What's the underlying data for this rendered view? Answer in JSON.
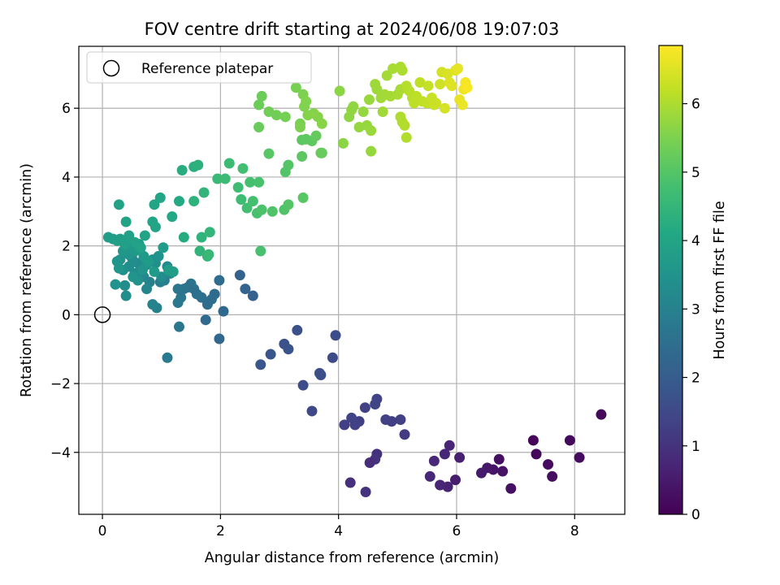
{
  "chart_data": {
    "type": "scatter",
    "title": "FOV centre drift starting at 2024/06/08 19:07:03",
    "xlabel": "Angular distance from reference (arcmin)",
    "ylabel": "Rotation from reference (arcmin)",
    "xlim": [
      -0.4,
      8.85
    ],
    "ylim": [
      -5.8,
      7.8
    ],
    "xticks": [
      0,
      2,
      4,
      6,
      8
    ],
    "yticks": [
      -4,
      -2,
      0,
      2,
      4,
      6
    ],
    "grid": true,
    "legend": {
      "placement": "top-left",
      "entries": [
        "Reference platepar"
      ]
    },
    "reference_point": {
      "x": 0,
      "y": 0
    },
    "colorbar": {
      "label": "Hours from first FF file",
      "colormap": "viridis",
      "range": [
        0,
        6.85
      ],
      "ticks": [
        0,
        1,
        2,
        3,
        4,
        5,
        6
      ]
    },
    "points": [
      [
        8.45,
        -2.9,
        0.15
      ],
      [
        8.08,
        -4.15,
        0.2
      ],
      [
        7.92,
        -3.65,
        0.15
      ],
      [
        7.62,
        -4.7,
        0.25
      ],
      [
        7.55,
        -4.35,
        0.2
      ],
      [
        7.35,
        -4.05,
        0.15
      ],
      [
        7.3,
        -3.65,
        0.1
      ],
      [
        6.92,
        -5.05,
        0.3
      ],
      [
        6.78,
        -4.55,
        0.35
      ],
      [
        6.72,
        -4.2,
        0.3
      ],
      [
        6.62,
        -4.5,
        0.4
      ],
      [
        6.52,
        -4.45,
        0.45
      ],
      [
        6.42,
        -4.6,
        0.5
      ],
      [
        6.05,
        -4.15,
        0.6
      ],
      [
        5.98,
        -4.8,
        0.55
      ],
      [
        5.88,
        -3.8,
        0.7
      ],
      [
        5.85,
        -5.0,
        0.65
      ],
      [
        5.8,
        -4.05,
        0.75
      ],
      [
        5.72,
        -4.95,
        0.7
      ],
      [
        5.62,
        -4.25,
        0.8
      ],
      [
        5.55,
        -4.7,
        0.75
      ],
      [
        4.65,
        -4.05,
        0.95
      ],
      [
        4.62,
        -4.2,
        1.0
      ],
      [
        4.53,
        -4.3,
        0.9
      ],
      [
        4.46,
        -5.15,
        1.0
      ],
      [
        4.2,
        -4.88,
        0.95
      ],
      [
        5.12,
        -3.48,
        1.2
      ],
      [
        5.05,
        -3.05,
        1.3
      ],
      [
        4.9,
        -3.1,
        1.25
      ],
      [
        4.8,
        -3.05,
        1.3
      ],
      [
        4.65,
        -2.45,
        1.35
      ],
      [
        4.62,
        -2.6,
        1.4
      ],
      [
        4.45,
        -2.7,
        1.3
      ],
      [
        4.35,
        -3.1,
        1.25
      ],
      [
        4.28,
        -3.2,
        1.3
      ],
      [
        4.22,
        -3.0,
        1.35
      ],
      [
        4.1,
        -3.2,
        1.3
      ],
      [
        3.95,
        -0.6,
        1.6
      ],
      [
        3.9,
        -1.25,
        1.55
      ],
      [
        3.7,
        -1.75,
        1.6
      ],
      [
        3.68,
        -1.7,
        1.65
      ],
      [
        3.55,
        -2.8,
        1.5
      ],
      [
        3.4,
        -2.05,
        1.6
      ],
      [
        3.3,
        -0.45,
        1.7
      ],
      [
        3.15,
        -1.0,
        1.75
      ],
      [
        3.08,
        -0.85,
        1.7
      ],
      [
        2.85,
        -1.15,
        1.8
      ],
      [
        2.68,
        -1.45,
        1.85
      ],
      [
        2.55,
        0.55,
        2.1
      ],
      [
        2.42,
        0.75,
        2.2
      ],
      [
        2.33,
        1.15,
        2.15
      ],
      [
        2.05,
        0.1,
        2.3
      ],
      [
        1.98,
        1.0,
        2.4
      ],
      [
        1.98,
        -0.7,
        2.3
      ],
      [
        1.9,
        0.6,
        2.35
      ],
      [
        1.85,
        0.45,
        2.45
      ],
      [
        1.78,
        0.3,
        2.4
      ],
      [
        1.75,
        -0.15,
        2.35
      ],
      [
        1.68,
        0.5,
        2.5
      ],
      [
        1.6,
        0.6,
        2.55
      ],
      [
        1.55,
        0.75,
        2.5
      ],
      [
        1.5,
        0.9,
        2.6
      ],
      [
        1.45,
        0.8,
        2.55
      ],
      [
        1.38,
        0.75,
        2.6
      ],
      [
        1.33,
        0.5,
        2.65
      ],
      [
        1.28,
        0.35,
        2.7
      ],
      [
        1.28,
        0.75,
        2.65
      ],
      [
        1.3,
        -0.35,
        2.7
      ],
      [
        1.1,
        -1.25,
        2.8
      ],
      [
        1.05,
        1.0,
        2.9
      ],
      [
        0.98,
        0.95,
        2.95
      ],
      [
        0.92,
        0.2,
        3.0
      ],
      [
        0.85,
        0.3,
        3.05
      ],
      [
        0.8,
        0.95,
        3.0
      ],
      [
        0.75,
        0.75,
        3.1
      ],
      [
        0.7,
        1.1,
        3.15
      ],
      [
        0.65,
        1.35,
        3.2
      ],
      [
        0.6,
        1.5,
        3.25
      ],
      [
        0.55,
        1.2,
        3.3
      ],
      [
        0.5,
        1.65,
        3.3
      ],
      [
        0.45,
        1.4,
        3.35
      ],
      [
        0.4,
        0.55,
        3.3
      ],
      [
        0.38,
        0.85,
        3.35
      ],
      [
        0.35,
        1.3,
        3.4
      ],
      [
        0.3,
        1.6,
        3.45
      ],
      [
        0.25,
        1.55,
        3.5
      ],
      [
        0.22,
        0.88,
        3.45
      ],
      [
        1.15,
        1.2,
        3.2
      ],
      [
        1.1,
        1.4,
        3.25
      ],
      [
        1.0,
        1.1,
        3.3
      ],
      [
        0.9,
        1.5,
        3.35
      ],
      [
        0.85,
        1.6,
        3.4
      ],
      [
        0.95,
        1.7,
        3.45
      ],
      [
        0.75,
        1.45,
        3.5
      ],
      [
        0.68,
        1.3,
        3.5
      ],
      [
        0.6,
        1.0,
        3.45
      ],
      [
        0.52,
        1.1,
        3.5
      ],
      [
        0.45,
        1.75,
        3.55
      ],
      [
        0.4,
        1.9,
        3.6
      ],
      [
        0.35,
        1.85,
        3.6
      ],
      [
        0.28,
        1.35,
        3.6
      ],
      [
        0.48,
        2.0,
        3.65
      ],
      [
        0.55,
        1.85,
        3.65
      ],
      [
        0.62,
        2.05,
        3.7
      ],
      [
        0.7,
        1.7,
        3.7
      ],
      [
        0.78,
        1.55,
        3.72
      ],
      [
        0.88,
        1.25,
        3.68
      ],
      [
        1.03,
        1.95,
        3.75
      ],
      [
        1.12,
        1.3,
        3.8
      ],
      [
        1.2,
        1.25,
        3.78
      ],
      [
        0.1,
        2.25,
        3.8
      ],
      [
        0.18,
        2.2,
        3.8
      ],
      [
        0.25,
        2.15,
        3.85
      ],
      [
        0.3,
        2.2,
        3.82
      ],
      [
        0.38,
        2.05,
        3.85
      ],
      [
        0.45,
        2.3,
        3.9
      ],
      [
        0.55,
        2.1,
        3.9
      ],
      [
        0.65,
        1.95,
        3.92
      ],
      [
        0.72,
        2.3,
        3.95
      ],
      [
        0.28,
        3.2,
        3.9
      ],
      [
        0.4,
        2.7,
        3.95
      ],
      [
        0.85,
        2.7,
        3.98
      ],
      [
        0.9,
        2.55,
        4.0
      ],
      [
        0.88,
        3.2,
        4.02
      ],
      [
        0.98,
        3.4,
        4.05
      ],
      [
        1.18,
        2.85,
        4.1
      ],
      [
        1.3,
        3.3,
        4.15
      ],
      [
        1.38,
        2.25,
        4.2
      ],
      [
        1.35,
        4.2,
        4.25
      ],
      [
        1.55,
        4.3,
        4.3
      ],
      [
        1.62,
        4.35,
        4.35
      ],
      [
        1.55,
        3.3,
        4.4
      ],
      [
        1.72,
        3.55,
        4.45
      ],
      [
        1.68,
        2.25,
        4.4
      ],
      [
        1.65,
        1.85,
        4.45
      ],
      [
        1.78,
        1.7,
        4.5
      ],
      [
        1.82,
        2.4,
        4.5
      ],
      [
        1.8,
        1.75,
        4.55
      ],
      [
        1.95,
        3.95,
        4.6
      ],
      [
        2.08,
        3.95,
        4.65
      ],
      [
        2.15,
        4.4,
        4.65
      ],
      [
        2.3,
        3.7,
        4.7
      ],
      [
        2.35,
        3.35,
        4.7
      ],
      [
        2.38,
        4.25,
        4.75
      ],
      [
        2.45,
        3.1,
        4.78
      ],
      [
        2.5,
        3.85,
        4.8
      ],
      [
        2.55,
        3.3,
        4.8
      ],
      [
        2.62,
        2.95,
        4.85
      ],
      [
        2.65,
        3.85,
        4.85
      ],
      [
        2.68,
        1.85,
        4.85
      ],
      [
        2.7,
        3.05,
        4.9
      ],
      [
        2.88,
        3.0,
        4.95
      ],
      [
        3.08,
        3.05,
        4.95
      ],
      [
        3.1,
        4.15,
        4.98
      ],
      [
        3.15,
        4.35,
        5.0
      ],
      [
        3.15,
        3.2,
        5.0
      ],
      [
        3.4,
        3.4,
        5.05
      ],
      [
        2.82,
        4.68,
        5.05
      ],
      [
        3.38,
        4.6,
        5.1
      ],
      [
        3.38,
        5.08,
        5.1
      ],
      [
        3.45,
        5.1,
        5.15
      ],
      [
        3.55,
        5.05,
        5.15
      ],
      [
        3.62,
        5.2,
        5.2
      ],
      [
        3.7,
        4.7,
        5.2
      ],
      [
        3.72,
        4.7,
        5.25
      ],
      [
        2.65,
        5.45,
        5.25
      ],
      [
        2.65,
        6.1,
        5.3
      ],
      [
        2.7,
        6.35,
        5.3
      ],
      [
        2.82,
        5.9,
        5.35
      ],
      [
        2.95,
        5.8,
        5.35
      ],
      [
        3.1,
        5.75,
        5.4
      ],
      [
        3.28,
        6.6,
        5.45
      ],
      [
        3.35,
        5.55,
        5.45
      ],
      [
        3.35,
        5.45,
        5.5
      ],
      [
        3.4,
        6.4,
        5.5
      ],
      [
        3.42,
        6.05,
        5.55
      ],
      [
        3.45,
        6.2,
        5.55
      ],
      [
        3.48,
        5.8,
        5.58
      ],
      [
        3.58,
        5.85,
        5.6
      ],
      [
        3.65,
        5.75,
        5.6
      ],
      [
        3.72,
        5.55,
        5.62
      ],
      [
        4.02,
        6.5,
        5.65
      ],
      [
        4.08,
        4.98,
        5.65
      ],
      [
        4.18,
        5.75,
        5.7
      ],
      [
        4.25,
        6.05,
        5.7
      ],
      [
        4.22,
        5.95,
        5.72
      ],
      [
        4.35,
        5.45,
        5.75
      ],
      [
        4.42,
        5.9,
        5.75
      ],
      [
        4.48,
        5.5,
        5.78
      ],
      [
        4.55,
        4.75,
        5.78
      ],
      [
        4.55,
        5.35,
        5.8
      ],
      [
        4.52,
        6.25,
        5.8
      ],
      [
        4.62,
        6.7,
        5.85
      ],
      [
        4.65,
        6.55,
        5.85
      ],
      [
        4.72,
        6.3,
        5.88
      ],
      [
        4.75,
        5.9,
        5.88
      ],
      [
        4.78,
        6.4,
        5.9
      ],
      [
        4.82,
        6.95,
        5.9
      ],
      [
        4.88,
        6.35,
        5.92
      ],
      [
        4.92,
        7.15,
        5.95
      ],
      [
        5.0,
        6.4,
        5.95
      ],
      [
        5.05,
        6.55,
        5.98
      ],
      [
        5.05,
        7.2,
        6.0
      ],
      [
        5.08,
        7.1,
        6.0
      ],
      [
        5.05,
        5.75,
        6.02
      ],
      [
        5.08,
        5.6,
        6.02
      ],
      [
        5.12,
        5.5,
        6.05
      ],
      [
        5.15,
        5.15,
        6.05
      ],
      [
        5.15,
        6.65,
        6.08
      ],
      [
        5.2,
        6.5,
        6.1
      ],
      [
        5.25,
        6.3,
        6.12
      ],
      [
        5.28,
        6.15,
        6.15
      ],
      [
        5.32,
        6.35,
        6.15
      ],
      [
        5.38,
        6.75,
        6.18
      ],
      [
        5.42,
        6.2,
        6.2
      ],
      [
        5.5,
        6.15,
        6.22
      ],
      [
        5.52,
        6.65,
        6.25
      ],
      [
        5.58,
        6.3,
        6.28
      ],
      [
        5.62,
        6.1,
        6.3
      ],
      [
        5.65,
        6.15,
        6.32
      ],
      [
        5.72,
        6.7,
        6.35
      ],
      [
        5.75,
        7.05,
        6.4
      ],
      [
        5.8,
        6.0,
        6.42
      ],
      [
        5.85,
        7.0,
        6.45
      ],
      [
        5.88,
        6.75,
        6.5
      ],
      [
        5.92,
        6.65,
        6.52
      ],
      [
        5.98,
        7.1,
        6.55
      ],
      [
        6.02,
        7.15,
        6.6
      ],
      [
        6.05,
        6.25,
        6.62
      ],
      [
        6.1,
        6.1,
        6.65
      ],
      [
        6.12,
        6.55,
        6.7
      ],
      [
        6.15,
        6.75,
        6.75
      ],
      [
        6.18,
        6.6,
        6.8
      ]
    ]
  }
}
